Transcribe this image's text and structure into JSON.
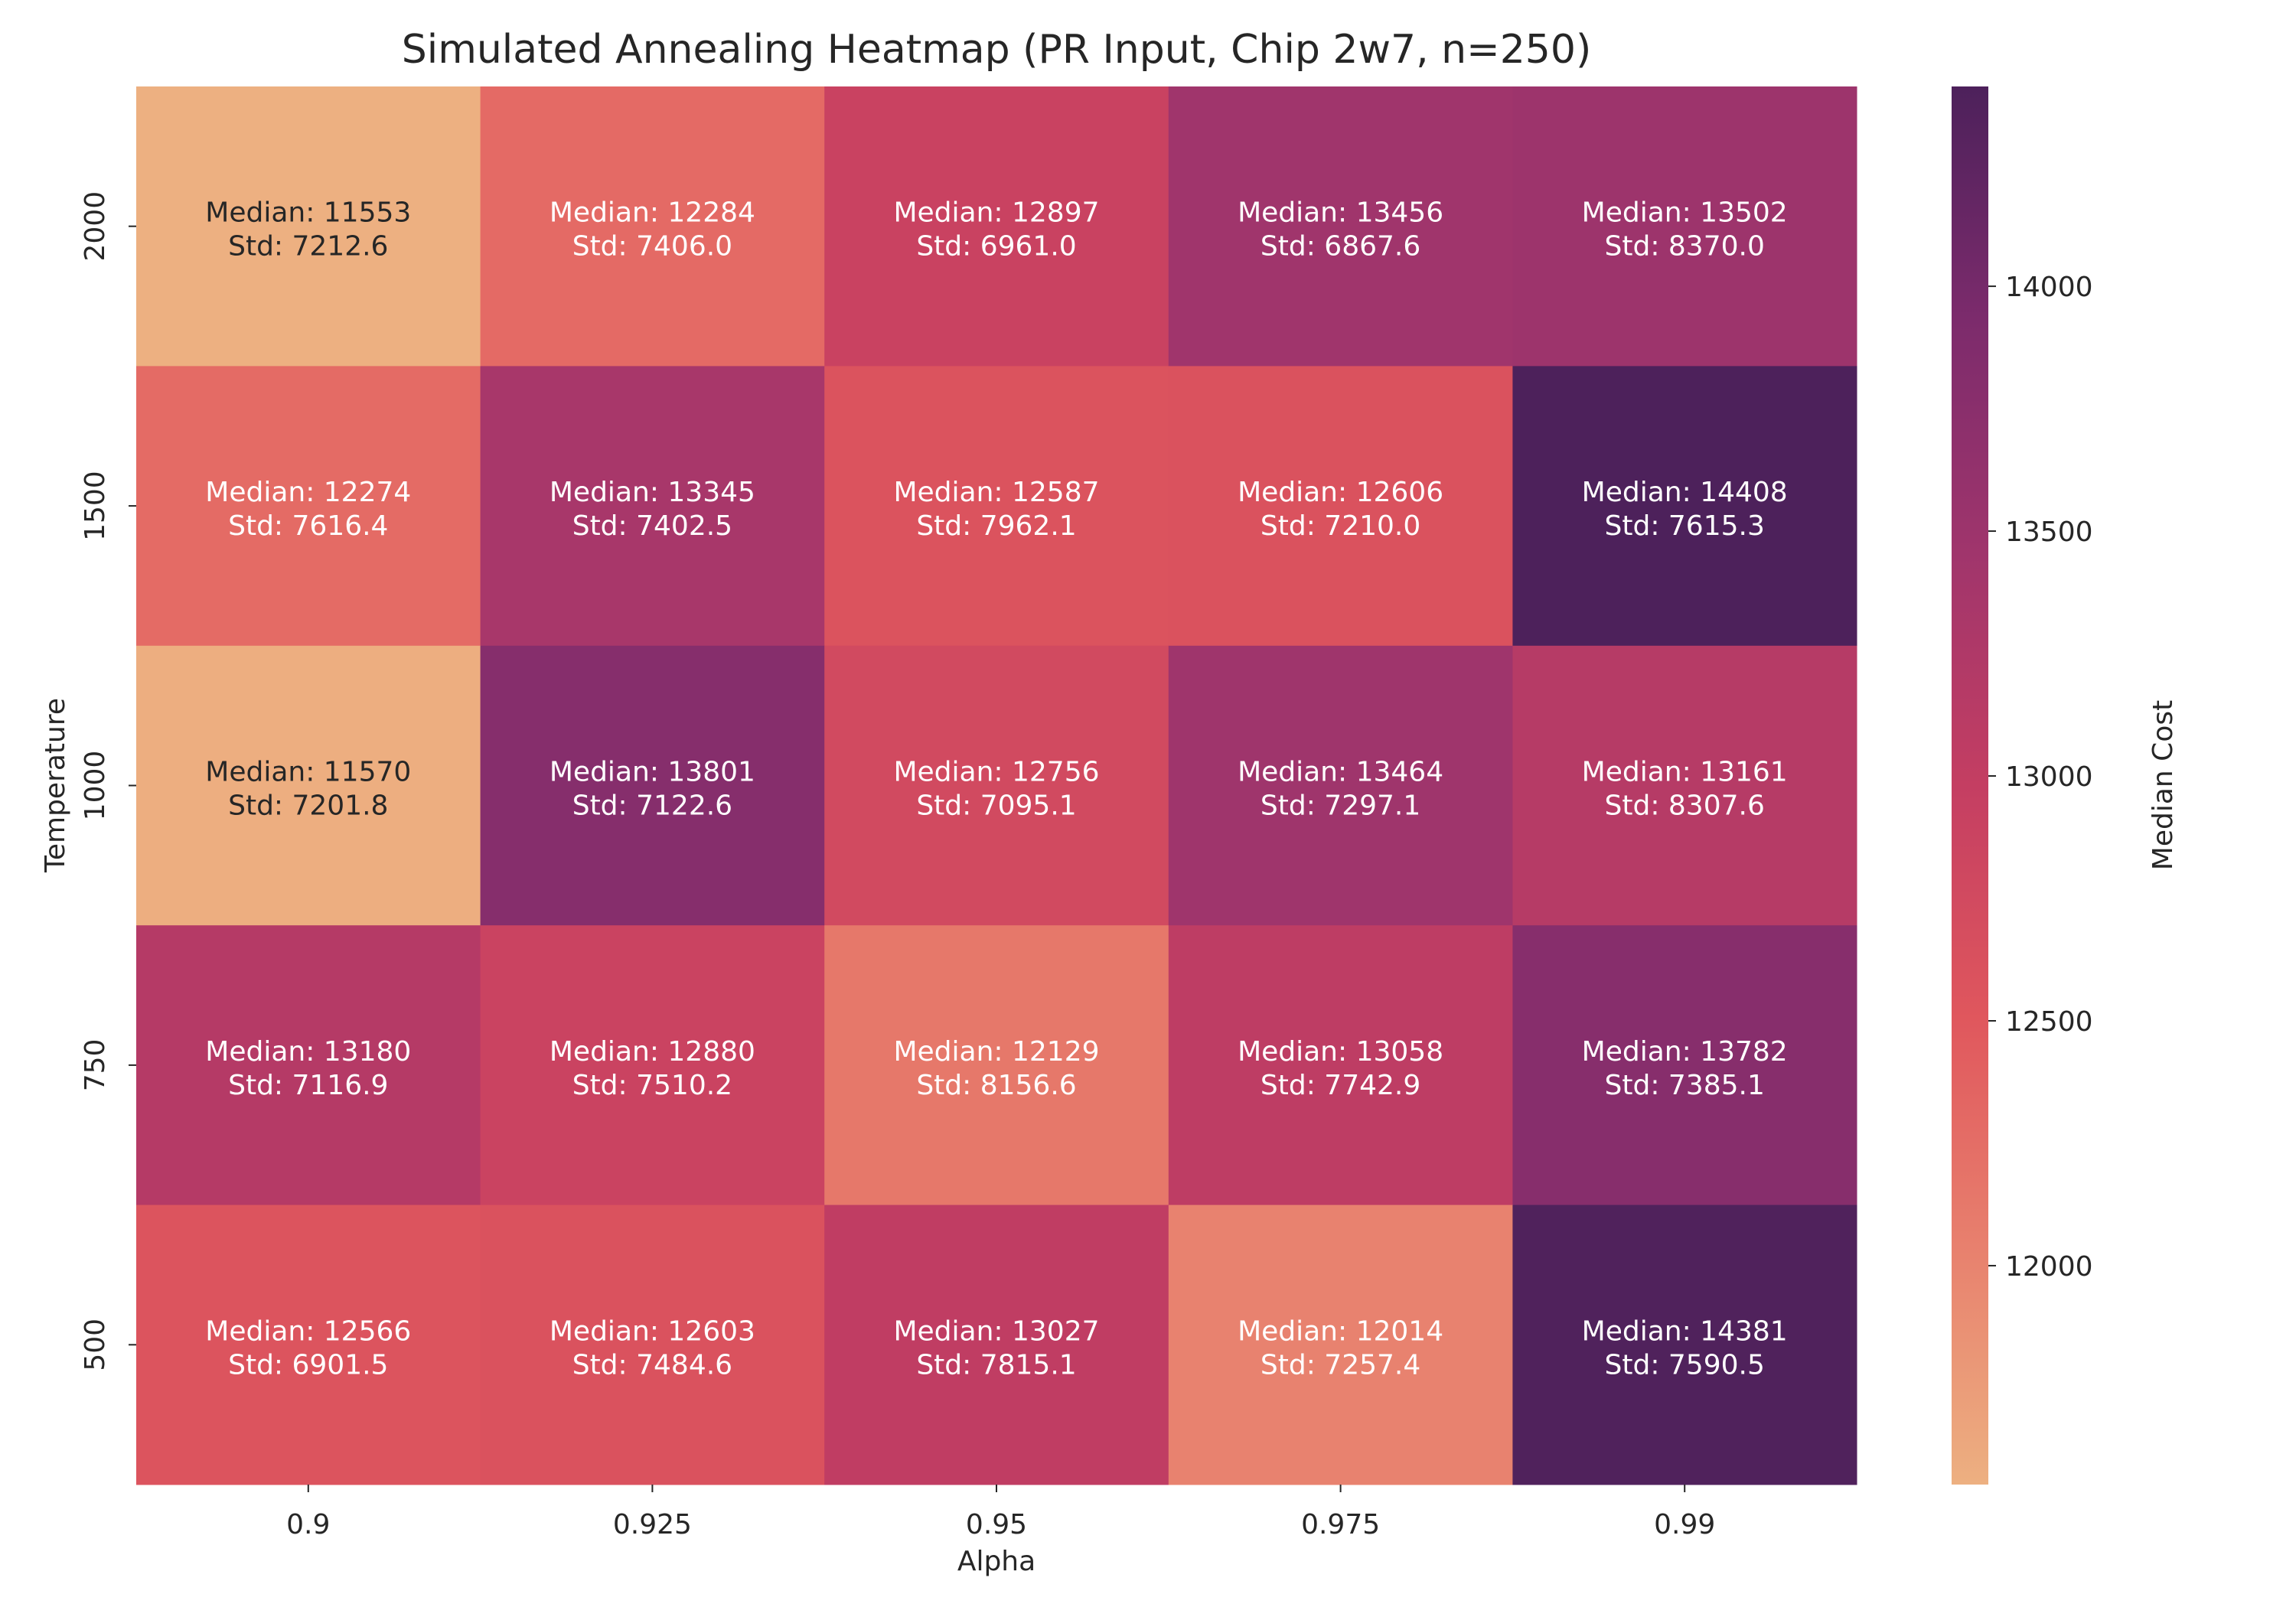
{
  "chart_data": {
    "type": "heatmap",
    "title": "Simulated Annealing Heatmap (PR Input, Chip 2w7, n=250)",
    "xlabel": "Alpha",
    "ylabel": "Temperature",
    "x_categories": [
      "0.9",
      "0.925",
      "0.95",
      "0.975",
      "0.99"
    ],
    "y_categories": [
      "2000",
      "1500",
      "1000",
      "750",
      "500"
    ],
    "cell_label_prefixes": {
      "median": "Median: ",
      "std": "Std: "
    },
    "median": [
      [
        11553,
        12284,
        12897,
        13456,
        13502
      ],
      [
        12274,
        13345,
        12587,
        12606,
        14408
      ],
      [
        11570,
        13801,
        12756,
        13464,
        13161
      ],
      [
        13180,
        12880,
        12129,
        13058,
        13782
      ],
      [
        12566,
        12603,
        13027,
        12014,
        14381
      ]
    ],
    "std": [
      [
        "7212.6",
        "7406.0",
        "6961.0",
        "6867.6",
        "8370.0"
      ],
      [
        "7616.4",
        "7402.5",
        "7962.1",
        "7210.0",
        "7615.3"
      ],
      [
        "7201.8",
        "7122.6",
        "7095.1",
        "7297.1",
        "8307.6"
      ],
      [
        "7116.9",
        "7510.2",
        "8156.6",
        "7742.9",
        "7385.1"
      ],
      [
        "6901.5",
        "7484.6",
        "7815.1",
        "7257.4",
        "7590.5"
      ]
    ],
    "colorbar": {
      "label": "Median Cost",
      "vmin": 11553,
      "vmax": 14408,
      "ticks": [
        12000,
        12500,
        13000,
        13500,
        14000
      ]
    },
    "colormap": [
      "#edb081",
      "#e8816e",
      "#e0575d",
      "#c43e62",
      "#a0356c",
      "#7c2b6c",
      "#4d215b"
    ],
    "grid": false,
    "legend": "colorbar-right"
  }
}
